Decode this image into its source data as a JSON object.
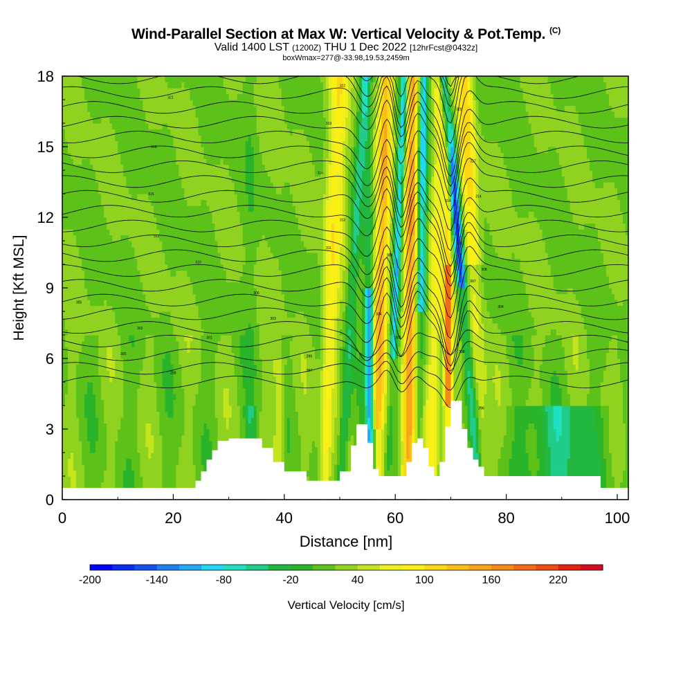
{
  "header": {
    "title": "Wind-Parallel Section at Max W: Vertical Velocity & Pot.Temp.",
    "copyright": "(C)",
    "valid_main": "Valid 1400 LST",
    "valid_z": "(1200Z)",
    "valid_date": "THU 1 Dec 2022",
    "forecast": "[12hrFcst@0432z]",
    "box_info": "boxWmax=277@-33.98,19.53,2459m"
  },
  "chart_data": {
    "type": "heatmap",
    "title": "Wind-Parallel Section at Max W: Vertical Velocity & Pot.Temp.",
    "xlabel": "Distance [nm]",
    "ylabel": "Height [Kft MSL]",
    "xlim": [
      0,
      102
    ],
    "ylim": [
      0,
      18
    ],
    "x_ticks": [
      0,
      20,
      40,
      60,
      80,
      100
    ],
    "y_ticks": [
      0,
      3,
      6,
      9,
      12,
      15,
      18
    ],
    "colorbar": {
      "label": "Vertical Velocity [cm/s]",
      "tick_labels": [
        "-200",
        "-140",
        "-80",
        "-20",
        "40",
        "100",
        "160",
        "220"
      ],
      "bins": [
        -200,
        -180,
        -160,
        -140,
        -120,
        -100,
        -80,
        -60,
        -40,
        -20,
        0,
        20,
        40,
        60,
        80,
        100,
        120,
        140,
        160,
        180,
        200,
        220,
        240,
        260
      ],
      "colors": [
        "#0000ff",
        "#0a2cf2",
        "#1450ee",
        "#1d7ff0",
        "#22a8f4",
        "#21d8f4",
        "#1fe0c0",
        "#20cc88",
        "#22b840",
        "#29b42a",
        "#5cc21a",
        "#8fd320",
        "#c4e41c",
        "#eeef1f",
        "#fbf014",
        "#fcd814",
        "#fbbf16",
        "#f9a51a",
        "#f58a18",
        "#f26c16",
        "#ee4a12",
        "#e6200e",
        "#d40a20"
      ]
    },
    "terrain_kft": {
      "x": [
        0,
        23,
        24,
        25,
        26,
        27,
        28,
        30,
        34,
        36,
        38,
        40,
        44,
        46,
        49,
        50,
        52,
        53,
        54,
        55,
        56,
        57,
        58,
        60,
        62,
        63,
        64,
        65,
        66,
        67,
        68,
        69,
        70,
        71,
        72,
        73,
        74,
        75,
        76,
        80,
        85,
        90,
        96,
        97,
        102
      ],
      "y": [
        0.5,
        0.5,
        0.8,
        1.2,
        1.7,
        2.1,
        2.5,
        2.6,
        2.6,
        2.2,
        1.6,
        1.2,
        0.8,
        0.8,
        0.8,
        1.2,
        2.3,
        3.2,
        3.2,
        2.4,
        1.3,
        1.0,
        1.0,
        1.0,
        1.6,
        2.4,
        2.6,
        2.2,
        1.4,
        1.0,
        1.6,
        3.1,
        4.2,
        4.2,
        3.0,
        2.2,
        1.7,
        1.4,
        1.0,
        1.0,
        1.0,
        1.0,
        1.0,
        0.5,
        0.5
      ]
    },
    "isentrope_labels": [
      {
        "x": 3,
        "y": 8.4,
        "text": "305"
      },
      {
        "x": 14,
        "y": 7.3,
        "text": "302"
      },
      {
        "x": 11,
        "y": 6.2,
        "text": "300"
      },
      {
        "x": 20,
        "y": 5.4,
        "text": "298"
      },
      {
        "x": 26.5,
        "y": 6.9,
        "text": "301"
      },
      {
        "x": 24.5,
        "y": 10.1,
        "text": "310"
      },
      {
        "x": 17,
        "y": 11.2,
        "text": "312"
      },
      {
        "x": 16,
        "y": 13.0,
        "text": "315"
      },
      {
        "x": 16.5,
        "y": 15.0,
        "text": "318"
      },
      {
        "x": 19.5,
        "y": 17.1,
        "text": "321"
      },
      {
        "x": 35,
        "y": 8.8,
        "text": "306"
      },
      {
        "x": 38,
        "y": 7.7,
        "text": "303"
      },
      {
        "x": 44.5,
        "y": 6.1,
        "text": "299"
      },
      {
        "x": 44.5,
        "y": 5.5,
        "text": "297"
      },
      {
        "x": 48,
        "y": 10.7,
        "text": "311"
      },
      {
        "x": 50.5,
        "y": 11.9,
        "text": "313"
      },
      {
        "x": 46.5,
        "y": 13.9,
        "text": "316"
      },
      {
        "x": 48,
        "y": 16.0,
        "text": "319"
      },
      {
        "x": 50.5,
        "y": 17.6,
        "text": "322"
      },
      {
        "x": 57,
        "y": 7.9,
        "text": "304"
      },
      {
        "x": 59,
        "y": 10.4,
        "text": "309"
      },
      {
        "x": 60.5,
        "y": 6.9,
        "text": "302"
      },
      {
        "x": 69.5,
        "y": 12.7,
        "text": "314"
      },
      {
        "x": 71.5,
        "y": 10.9,
        "text": "310"
      },
      {
        "x": 71.5,
        "y": 16.6,
        "text": "320"
      },
      {
        "x": 74,
        "y": 14.4,
        "text": "317"
      },
      {
        "x": 75,
        "y": 12.9,
        "text": "314"
      },
      {
        "x": 74,
        "y": 9.3,
        "text": "307"
      },
      {
        "x": 76,
        "y": 9.8,
        "text": "308"
      },
      {
        "x": 79,
        "y": 8.2,
        "text": "304"
      },
      {
        "x": 72,
        "y": 6.3,
        "text": "300"
      },
      {
        "x": 75.5,
        "y": 3.9,
        "text": "296"
      }
    ]
  }
}
